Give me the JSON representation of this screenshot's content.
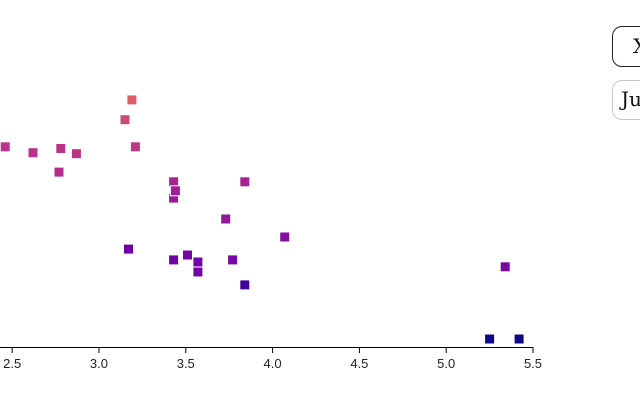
{
  "controls": {
    "button_label": "X",
    "select_value": "Ju"
  },
  "colors": {
    "axis": "#000000",
    "marker_scale": [
      "#0d0887",
      "#6a00a8",
      "#b12a90",
      "#e16462"
    ]
  },
  "chart_data": {
    "type": "scatter",
    "title": "",
    "xlabel": "",
    "ylabel": "",
    "x_ticks": [
      "2.5",
      "3.0",
      "3.5",
      "4.0",
      "4.5",
      "5.0",
      "5.5"
    ],
    "xlim": [
      2.43,
      5.5
    ],
    "ylim": [
      0,
      100
    ],
    "marker": "square",
    "points": [
      {
        "x": 2.46,
        "y": 57.7,
        "c": 0.72
      },
      {
        "x": 2.62,
        "y": 56.0,
        "c": 0.72
      },
      {
        "x": 2.77,
        "y": 50.4,
        "c": 0.68
      },
      {
        "x": 2.78,
        "y": 57.2,
        "c": 0.72
      },
      {
        "x": 2.87,
        "y": 55.7,
        "c": 0.72
      },
      {
        "x": 3.15,
        "y": 65.5,
        "c": 0.85
      },
      {
        "x": 3.17,
        "y": 28.2,
        "c": 0.35
      },
      {
        "x": 3.19,
        "y": 71.2,
        "c": 0.97
      },
      {
        "x": 3.21,
        "y": 57.7,
        "c": 0.74
      },
      {
        "x": 3.43,
        "y": 47.6,
        "c": 0.62
      },
      {
        "x": 3.43,
        "y": 42.9,
        "c": 0.55
      },
      {
        "x": 3.43,
        "y": 25.1,
        "c": 0.35
      },
      {
        "x": 3.44,
        "y": 45.0,
        "c": 0.58
      },
      {
        "x": 3.51,
        "y": 26.5,
        "c": 0.38
      },
      {
        "x": 3.57,
        "y": 24.5,
        "c": 0.37
      },
      {
        "x": 3.57,
        "y": 21.6,
        "c": 0.37
      },
      {
        "x": 3.73,
        "y": 36.9,
        "c": 0.52
      },
      {
        "x": 3.77,
        "y": 25.1,
        "c": 0.4
      },
      {
        "x": 3.84,
        "y": 47.6,
        "c": 0.6
      },
      {
        "x": 3.84,
        "y": 17.9,
        "c": 0.18
      },
      {
        "x": 4.07,
        "y": 31.7,
        "c": 0.45
      },
      {
        "x": 5.25,
        "y": 2.3,
        "c": 0.0
      },
      {
        "x": 5.34,
        "y": 23.1,
        "c": 0.4
      },
      {
        "x": 5.42,
        "y": 2.3,
        "c": 0.0
      }
    ]
  }
}
